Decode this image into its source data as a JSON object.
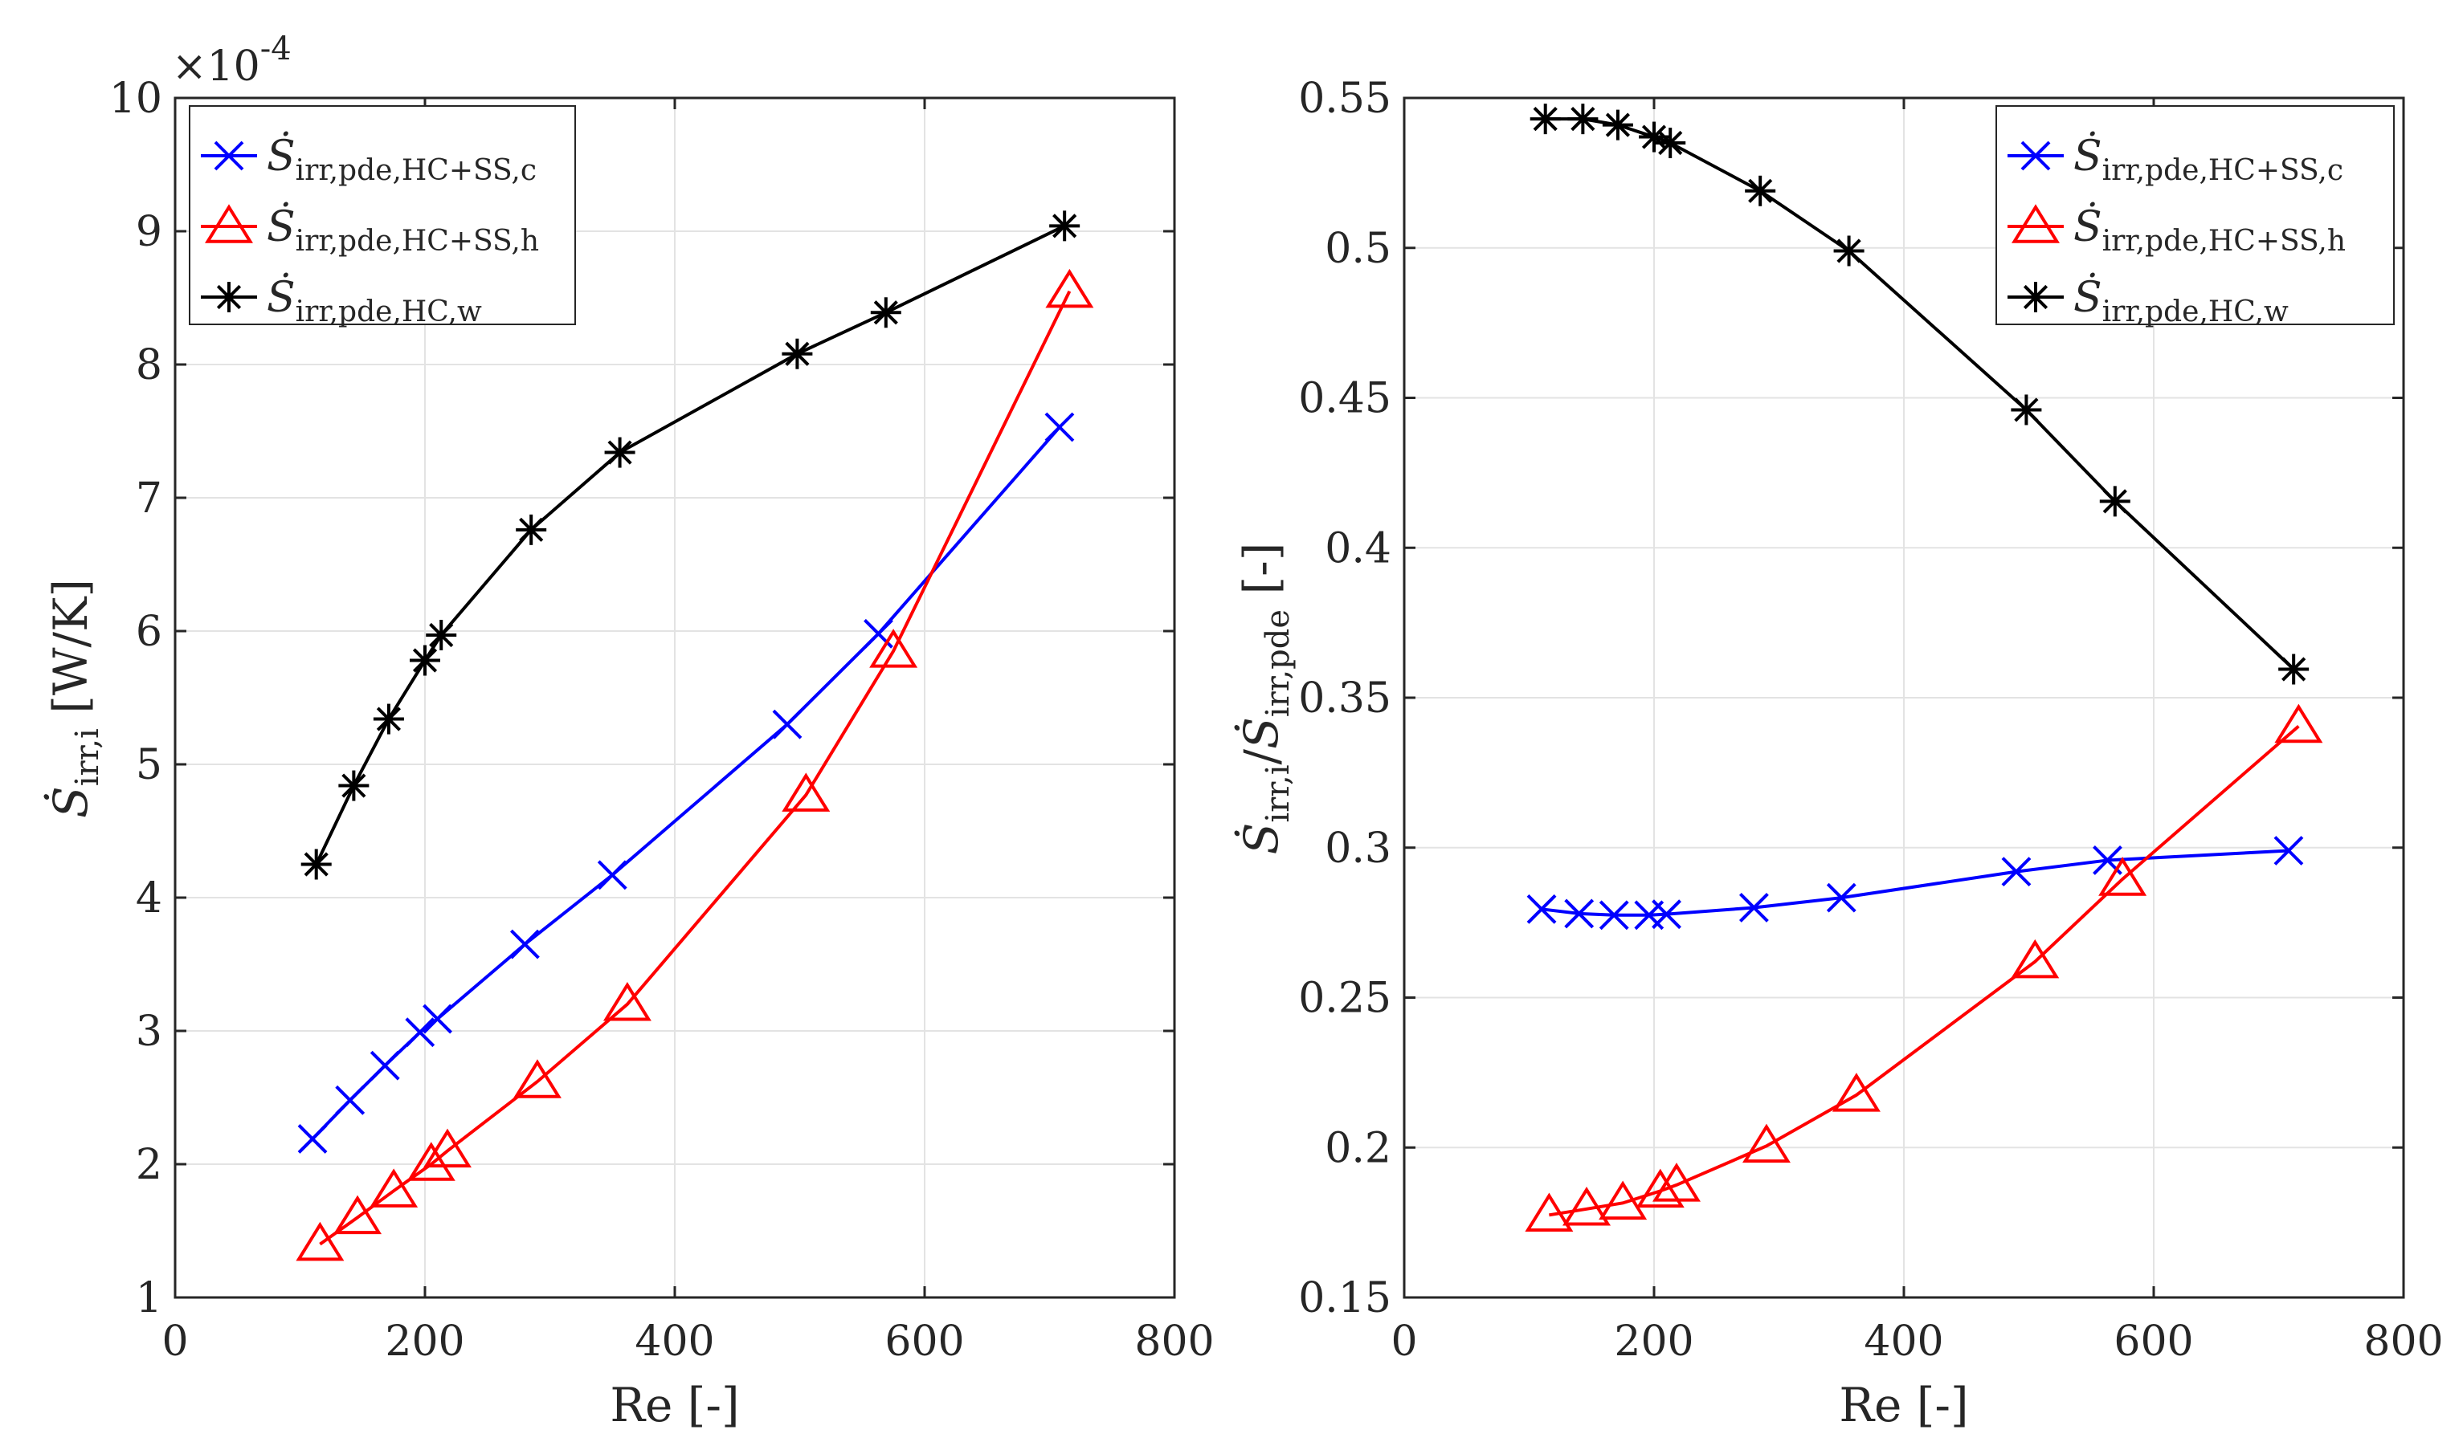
{
  "chart_data": [
    {
      "type": "line",
      "title": "",
      "xlabel": "Re [-]",
      "ylabel": "Ṡirr,i [W/K]",
      "ylabel_parts": {
        "symbol": "Ṡ",
        "sub": "irr,i",
        "unit": " [W/K]"
      },
      "y_exponent": "×10",
      "y_exponent_power": "-4",
      "xlim": [
        0,
        800
      ],
      "ylim": [
        1,
        10
      ],
      "xticks": [
        0,
        200,
        400,
        600,
        800
      ],
      "yticks": [
        1,
        2,
        3,
        4,
        5,
        6,
        7,
        8,
        9,
        10
      ],
      "grid": true,
      "legend_position": "top-left",
      "series": [
        {
          "name": "Ṡirr,pde,HC+SS,c",
          "symbol": "Ṡ",
          "sub": "irr,pde,HC+SS,c",
          "color": "#0000FF",
          "marker": "x",
          "x": [
            110,
            140,
            168,
            196,
            210,
            280,
            350,
            490,
            563,
            708
          ],
          "y": [
            2.19,
            2.48,
            2.74,
            2.99,
            3.09,
            3.65,
            4.17,
            5.3,
            5.98,
            7.53
          ]
        },
        {
          "name": "Ṡirr,pde,HC+SS,h",
          "symbol": "Ṡ",
          "sub": "irr,pde,HC+SS,h",
          "color": "#FF0000",
          "marker": "triangle",
          "x": [
            116,
            146,
            175,
            205,
            218,
            290,
            362,
            505,
            575,
            716
          ],
          "y": [
            1.4,
            1.6,
            1.8,
            2.0,
            2.1,
            2.62,
            3.2,
            4.77,
            5.85,
            8.55
          ]
        },
        {
          "name": "Ṡirr,pde,HC,w",
          "symbol": "Ṡ",
          "sub": "irr,pde,HC,w",
          "color": "#000000",
          "marker": "star",
          "x": [
            113,
            143,
            171,
            200,
            213,
            285,
            356,
            498,
            569,
            712
          ],
          "y": [
            4.25,
            4.84,
            5.34,
            5.78,
            5.97,
            6.76,
            7.34,
            8.08,
            8.39,
            9.04
          ]
        }
      ]
    },
    {
      "type": "line",
      "title": "",
      "xlabel": "Re [-]",
      "ylabel": "Ṡirr,i/Ṡirr,pde [-]",
      "ylabel_parts": {
        "symbol": "Ṡ",
        "sub": "irr,i",
        "mid": "/",
        "symbol2": "Ṡ",
        "sub2": "irr,pde",
        "unit": " [-]"
      },
      "xlim": [
        0,
        800
      ],
      "ylim": [
        0.15,
        0.55
      ],
      "xticks": [
        0,
        200,
        400,
        600,
        800
      ],
      "yticks": [
        0.15,
        0.2,
        0.25,
        0.3,
        0.35,
        0.4,
        0.45,
        0.5,
        0.55
      ],
      "ytick_labels": [
        "0.15",
        "0.2",
        "0.25",
        "0.3",
        "0.35",
        "0.4",
        "0.45",
        "0.5",
        "0.55"
      ],
      "grid": true,
      "legend_position": "top-right",
      "series": [
        {
          "name": "Ṡirr,pde,HC+SS,c",
          "symbol": "Ṡ",
          "sub": "irr,pde,HC+SS,c",
          "color": "#0000FF",
          "marker": "x",
          "x": [
            110,
            140,
            168,
            196,
            210,
            280,
            350,
            490,
            563,
            708
          ],
          "y": [
            0.2795,
            0.278,
            0.2775,
            0.2775,
            0.2778,
            0.28,
            0.2833,
            0.292,
            0.2958,
            0.299
          ]
        },
        {
          "name": "Ṡirr,pde,HC+SS,h",
          "symbol": "Ṡ",
          "sub": "irr,pde,HC+SS,h",
          "color": "#FF0000",
          "marker": "triangle",
          "x": [
            116,
            146,
            175,
            205,
            218,
            290,
            362,
            505,
            575,
            716
          ],
          "y": [
            0.1775,
            0.1795,
            0.1815,
            0.1855,
            0.1875,
            0.2005,
            0.2175,
            0.262,
            0.2895,
            0.3405
          ]
        },
        {
          "name": "Ṡirr,pde,HC,w",
          "symbol": "Ṡ",
          "sub": "irr,pde,HC,w",
          "color": "#000000",
          "marker": "star",
          "x": [
            113,
            143,
            171,
            200,
            213,
            285,
            356,
            498,
            569,
            712
          ],
          "y": [
            0.543,
            0.543,
            0.541,
            0.537,
            0.535,
            0.519,
            0.499,
            0.446,
            0.4155,
            0.3595
          ]
        }
      ]
    }
  ]
}
